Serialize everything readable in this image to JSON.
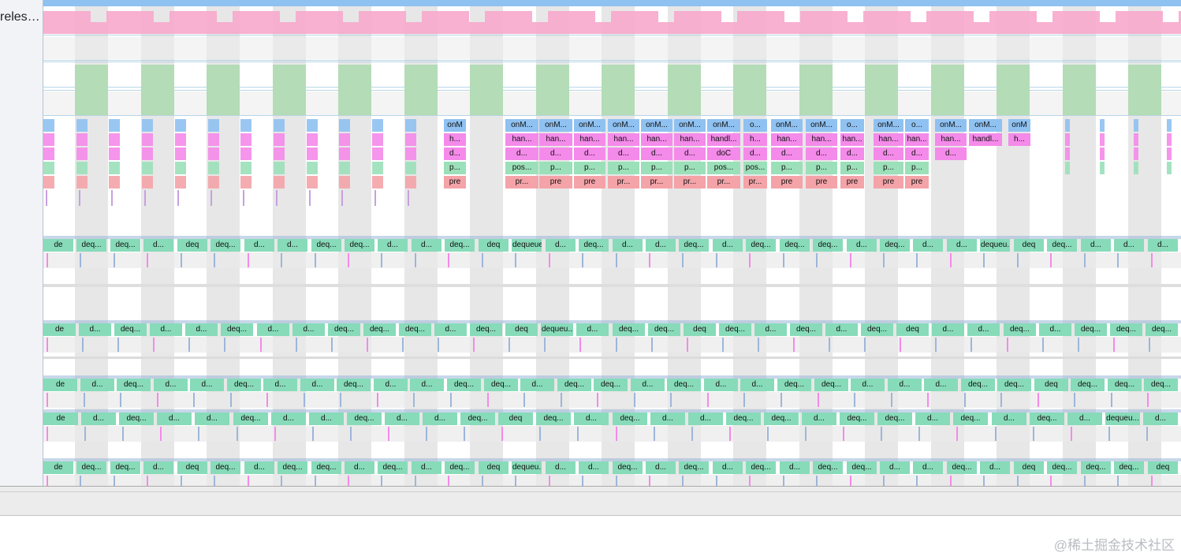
{
  "tracks": [
    {
      "label": "reles…"
    }
  ],
  "lanes": {
    "main_thread": {
      "row1": [
        "onM",
        "onM...",
        "onM...",
        "onM...",
        "onM...",
        "onM...",
        "onM...",
        "onM...",
        "o...",
        "onM...",
        "onM...",
        "o...",
        "onM...",
        "o...",
        "onM...",
        "onM...",
        "onM"
      ],
      "row2": [
        "h...",
        "han...",
        "han...",
        "han...",
        "han...",
        "han...",
        "han...",
        "handl...",
        "h...",
        "han...",
        "han...",
        "han...",
        "han...",
        "han...",
        "han...",
        "handl...",
        "h..."
      ],
      "row3": [
        "d...",
        "d...",
        "d...",
        "d...",
        "d...",
        "d...",
        "d...",
        "doC",
        "d...",
        "d...",
        "d...",
        "d...",
        "d...",
        "d...",
        "d..."
      ],
      "row4": [
        "p...",
        "pos...",
        "p...",
        "p...",
        "p...",
        "p...",
        "p...",
        "pos...",
        "pos...",
        "p...",
        "p...",
        "p...",
        "p...",
        "p..."
      ],
      "row5": [
        "pre",
        "pr...",
        "pre",
        "pre",
        "pr...",
        "pr...",
        "pr...",
        "pr...",
        "pr...",
        "pre",
        "pre",
        "pre",
        "pre",
        "pre"
      ]
    },
    "render_threads": [
      [
        "de",
        "deq...",
        "deq...",
        "d...",
        "deq",
        "deq...",
        "d...",
        "d...",
        "deq...",
        "deq...",
        "d...",
        "d...",
        "deq...",
        "deq",
        "dequeueBuffer",
        "d...",
        "deq...",
        "d...",
        "d...",
        "deq...",
        "d...",
        "deq...",
        "deq...",
        "deq...",
        "d...",
        "deq...",
        "d...",
        "d...",
        "dequeu...",
        "deq",
        "deq...",
        "d...",
        "d...",
        "d..."
      ],
      [
        "de",
        "d...",
        "deq...",
        "d...",
        "d...",
        "deq...",
        "d...",
        "d...",
        "deq...",
        "deq...",
        "deq...",
        "d...",
        "deq...",
        "deq",
        "dequeu...",
        "d...",
        "deq...",
        "deq...",
        "deq",
        "deq...",
        "d...",
        "deq...",
        "d...",
        "deq...",
        "deq",
        "d...",
        "d...",
        "deq...",
        "d...",
        "deq...",
        "deq...",
        "deq..."
      ],
      [
        "de",
        "d...",
        "deq...",
        "d...",
        "d...",
        "deq...",
        "d...",
        "d...",
        "deq...",
        "d...",
        "d...",
        "deq...",
        "deq...",
        "d...",
        "deq...",
        "deq...",
        "d...",
        "deq...",
        "d...",
        "d...",
        "deq...",
        "deq...",
        "d...",
        "d...",
        "d...",
        "deq...",
        "deq...",
        "deq",
        "deq...",
        "deq...",
        "deq..."
      ],
      [
        "de",
        "d...",
        "deq...",
        "d...",
        "d...",
        "deq...",
        "d...",
        "d...",
        "deq...",
        "d...",
        "d...",
        "deq...",
        "deq",
        "deq...",
        "d...",
        "deq...",
        "d...",
        "d...",
        "deq...",
        "deq...",
        "d...",
        "deq...",
        "deq...",
        "d...",
        "deq...",
        "d...",
        "deq...",
        "d...",
        "dequeu...",
        "d..."
      ],
      [
        "de",
        "deq...",
        "deq...",
        "d...",
        "deq",
        "deq...",
        "d...",
        "deq...",
        "deq...",
        "d...",
        "deq...",
        "d...",
        "deq...",
        "deq",
        "dequeu...",
        "d...",
        "d...",
        "deq...",
        "d...",
        "deq...",
        "d...",
        "deq...",
        "d...",
        "deq...",
        "deq...",
        "d...",
        "d...",
        "deq...",
        "d...",
        "deq",
        "deq...",
        "deq...",
        "deq...",
        "deq"
      ]
    ]
  },
  "colors": {
    "blue": "#8fc1f1",
    "pink": "#f7a9cc",
    "magenta": "#f48ae9",
    "green_frame": "#b4dcb6",
    "teal": "#87dbb9",
    "red": "#f4a3a8",
    "gray_column": "#e3e3e3"
  },
  "watermark": "@稀土掘金技术社区"
}
